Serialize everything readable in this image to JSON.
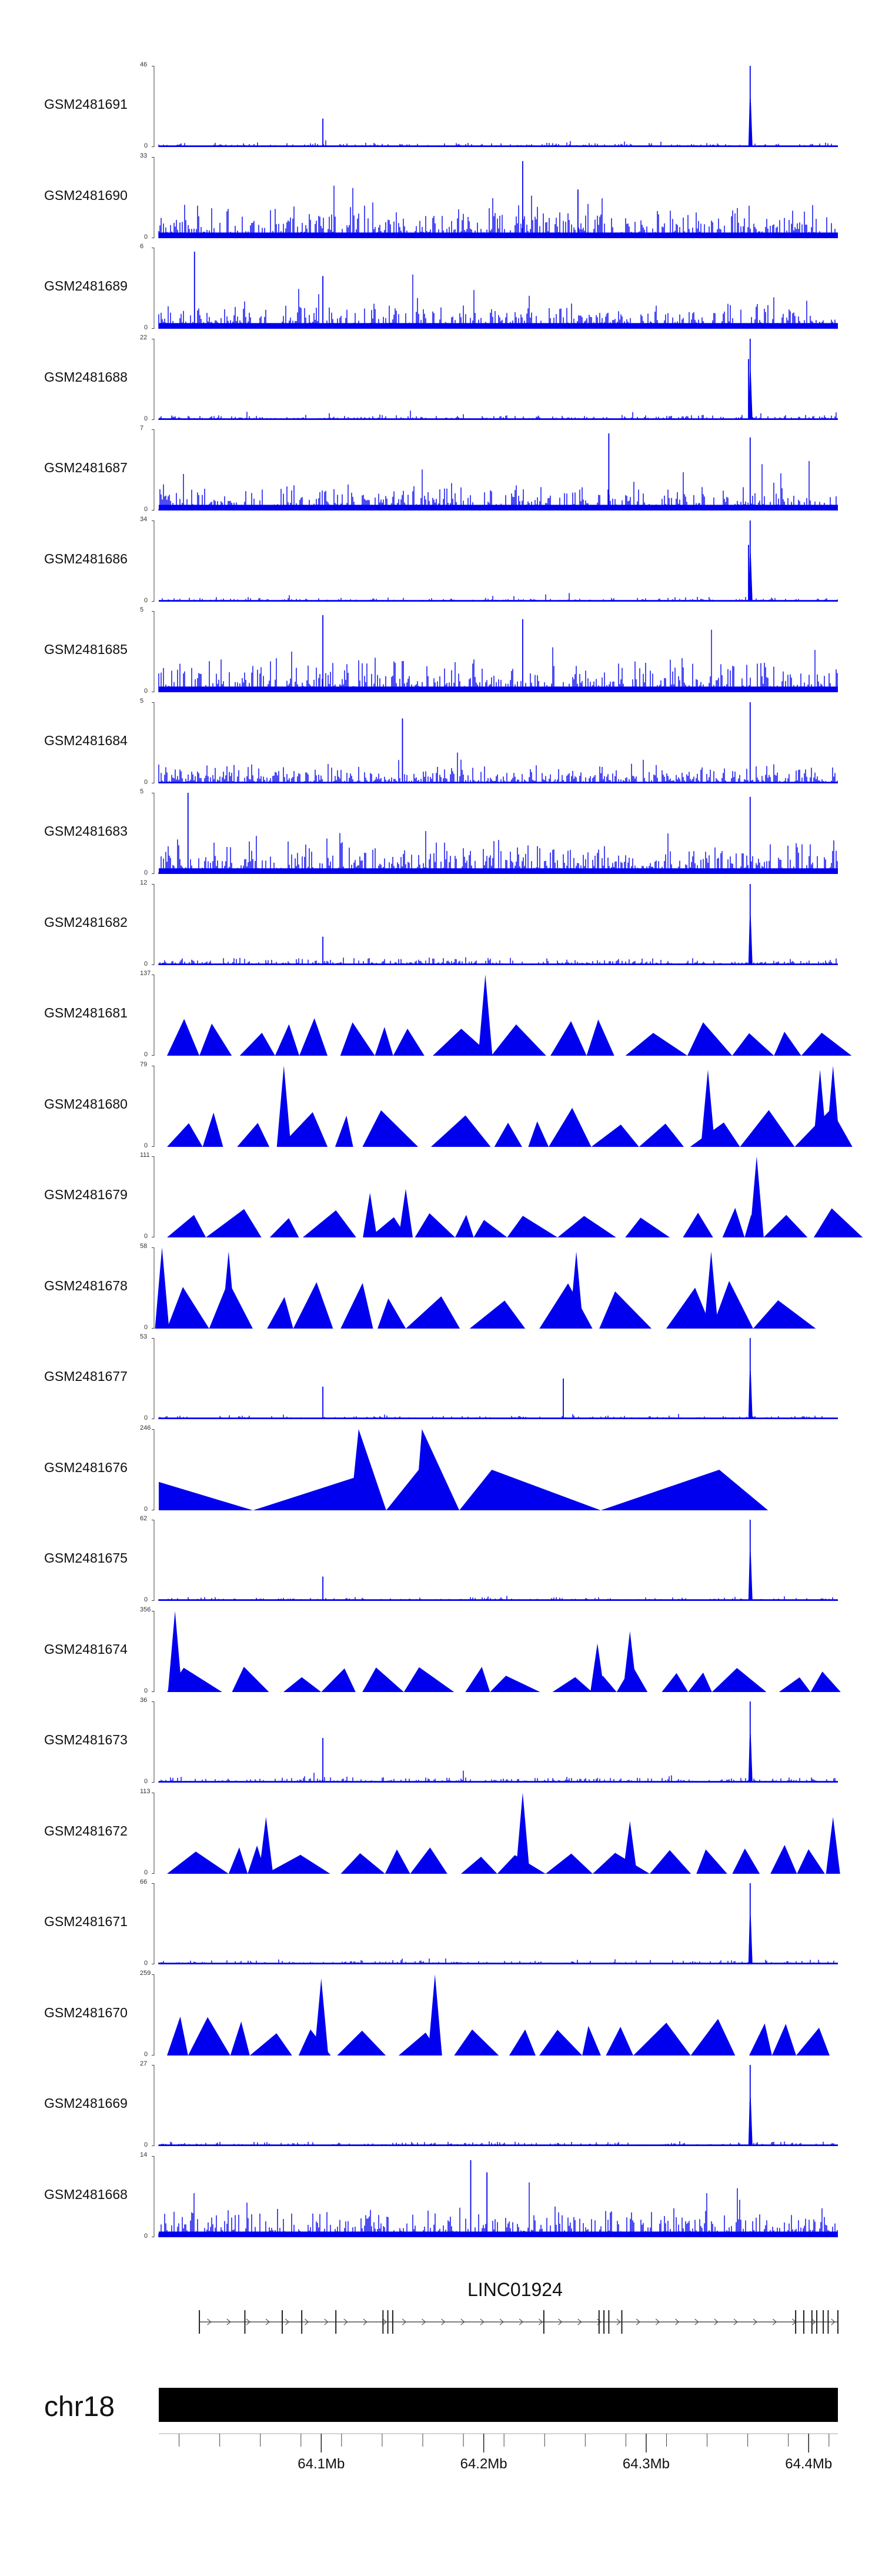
{
  "chart_data": {
    "type": "area",
    "tracks": [
      {
        "name": "GSM2481691",
        "ymax": "46",
        "style": "bars",
        "noise": 0.06,
        "density": 0.9,
        "peaks": [
          [
            64.364,
            1.0
          ],
          [
            64.101,
            0.35
          ]
        ]
      },
      {
        "name": "GSM2481690",
        "ymax": "33",
        "style": "bars",
        "noise": 0.45,
        "density": 0.95,
        "peaks": [
          [
            64.224,
            0.95
          ],
          [
            64.258,
            0.6
          ]
        ]
      },
      {
        "name": "GSM2481689",
        "ymax": "6",
        "style": "bars",
        "noise": 0.35,
        "density": 0.95,
        "peaks": [
          [
            64.022,
            0.95
          ],
          [
            64.101,
            0.65
          ]
        ]
      },
      {
        "name": "GSM2481688",
        "ymax": "22",
        "style": "bars",
        "noise": 0.08,
        "density": 0.9,
        "peaks": [
          [
            64.364,
            1.0
          ],
          [
            64.363,
            0.75
          ]
        ]
      },
      {
        "name": "GSM2481687",
        "ymax": "7",
        "style": "bars",
        "noise": 0.35,
        "density": 0.95,
        "peaks": [
          [
            64.277,
            0.95
          ],
          [
            64.364,
            0.9
          ]
        ]
      },
      {
        "name": "GSM2481686",
        "ymax": "34",
        "style": "bars",
        "noise": 0.06,
        "density": 0.9,
        "peaks": [
          [
            64.364,
            1.0
          ],
          [
            64.363,
            0.7
          ]
        ]
      },
      {
        "name": "GSM2481685",
        "ymax": "5",
        "style": "bars",
        "noise": 0.45,
        "density": 0.95,
        "peaks": [
          [
            64.101,
            0.95
          ],
          [
            64.224,
            0.9
          ]
        ]
      },
      {
        "name": "GSM2481684",
        "ymax": "5",
        "style": "bars",
        "noise": 0.25,
        "density": 0.95,
        "peaks": [
          [
            64.364,
            1.0
          ],
          [
            64.15,
            0.8
          ]
        ]
      },
      {
        "name": "GSM2481683",
        "ymax": "5",
        "style": "bars",
        "noise": 0.45,
        "density": 0.95,
        "peaks": [
          [
            64.018,
            1.0
          ],
          [
            64.364,
            0.95
          ]
        ]
      },
      {
        "name": "GSM2481682",
        "ymax": "12",
        "style": "bars",
        "noise": 0.1,
        "density": 0.9,
        "peaks": [
          [
            64.364,
            1.0
          ],
          [
            64.101,
            0.35
          ]
        ]
      },
      {
        "name": "GSM2481681",
        "ymax": "137",
        "style": "triangles",
        "height": 0.45,
        "peaks": [
          [
            64.201,
            1.0
          ]
        ]
      },
      {
        "name": "GSM2481680",
        "ymax": "79",
        "style": "triangles",
        "height": 0.45,
        "peaks": [
          [
            64.077,
            1.0
          ],
          [
            64.338,
            0.95
          ],
          [
            64.407,
            0.95
          ],
          [
            64.415,
            1.0
          ]
        ]
      },
      {
        "name": "GSM2481679",
        "ymax": "111",
        "style": "triangles",
        "height": 0.35,
        "peaks": [
          [
            64.368,
            1.0
          ],
          [
            64.13,
            0.55
          ],
          [
            64.152,
            0.6
          ]
        ]
      },
      {
        "name": "GSM2481678",
        "ymax": "58",
        "style": "triangles",
        "height": 0.55,
        "peaks": [
          [
            64.002,
            1.0
          ],
          [
            64.043,
            0.95
          ],
          [
            64.257,
            0.95
          ],
          [
            64.34,
            0.95
          ]
        ]
      },
      {
        "name": "GSM2481677",
        "ymax": "53",
        "style": "bars",
        "noise": 0.05,
        "density": 0.85,
        "peaks": [
          [
            64.364,
            1.0
          ],
          [
            64.249,
            0.5
          ],
          [
            64.101,
            0.4
          ]
        ]
      },
      {
        "name": "GSM2481676",
        "ymax": "246",
        "style": "big",
        "peaks": []
      },
      {
        "name": "GSM2481675",
        "ymax": "62",
        "style": "bars",
        "noise": 0.05,
        "density": 0.85,
        "peaks": [
          [
            64.364,
            1.0
          ],
          [
            64.101,
            0.3
          ]
        ]
      },
      {
        "name": "GSM2481674",
        "ymax": "356",
        "style": "triangles",
        "height": 0.3,
        "peaks": [
          [
            64.01,
            1.0
          ],
          [
            64.29,
            0.75
          ],
          [
            64.27,
            0.6
          ]
        ]
      },
      {
        "name": "GSM2481673",
        "ymax": "36",
        "style": "bars",
        "noise": 0.08,
        "density": 0.9,
        "peaks": [
          [
            64.364,
            1.0
          ],
          [
            64.101,
            0.55
          ]
        ]
      },
      {
        "name": "GSM2481672",
        "ymax": "113",
        "style": "triangles",
        "height": 0.35,
        "peaks": [
          [
            64.224,
            1.0
          ],
          [
            64.29,
            0.65
          ],
          [
            64.066,
            0.7
          ],
          [
            64.415,
            0.7
          ]
        ]
      },
      {
        "name": "GSM2481671",
        "ymax": "66",
        "style": "bars",
        "noise": 0.06,
        "density": 0.9,
        "peaks": [
          [
            64.364,
            1.0
          ]
        ]
      },
      {
        "name": "GSM2481670",
        "ymax": "259",
        "style": "triangles",
        "height": 0.45,
        "peaks": [
          [
            64.17,
            1.0
          ],
          [
            64.1,
            0.95
          ]
        ]
      },
      {
        "name": "GSM2481669",
        "ymax": "27",
        "style": "bars",
        "noise": 0.06,
        "density": 0.9,
        "peaks": [
          [
            64.364,
            1.0
          ]
        ]
      },
      {
        "name": "GSM2481668",
        "ymax": "14",
        "style": "bars",
        "noise": 0.4,
        "density": 0.95,
        "peaks": [
          [
            64.192,
            0.95
          ],
          [
            64.202,
            0.8
          ]
        ]
      }
    ],
    "ymin_label": "0",
    "xlim": [
      64.0,
      64.418
    ],
    "x_unit": "Mb",
    "x_ticks": [
      64.1,
      64.2,
      64.3,
      64.4
    ],
    "x_tick_labels": [
      "64.1Mb",
      "64.2Mb",
      "64.3Mb",
      "64.4Mb"
    ],
    "x_minor_step": 0.025,
    "gene": {
      "name": "LINC01924",
      "start": 64.025,
      "end": 64.418,
      "strand": "+",
      "exons": [
        64.025,
        64.053,
        64.076,
        64.088,
        64.109,
        64.138,
        64.141,
        64.144,
        64.237,
        64.271,
        64.274,
        64.277,
        64.285,
        64.392,
        64.397,
        64.402,
        64.405,
        64.409,
        64.412,
        64.418
      ]
    },
    "chromosome": "chr18",
    "colors": {
      "signal": "#0000ee",
      "ideogram": "#000000",
      "axis": "#444444"
    }
  }
}
